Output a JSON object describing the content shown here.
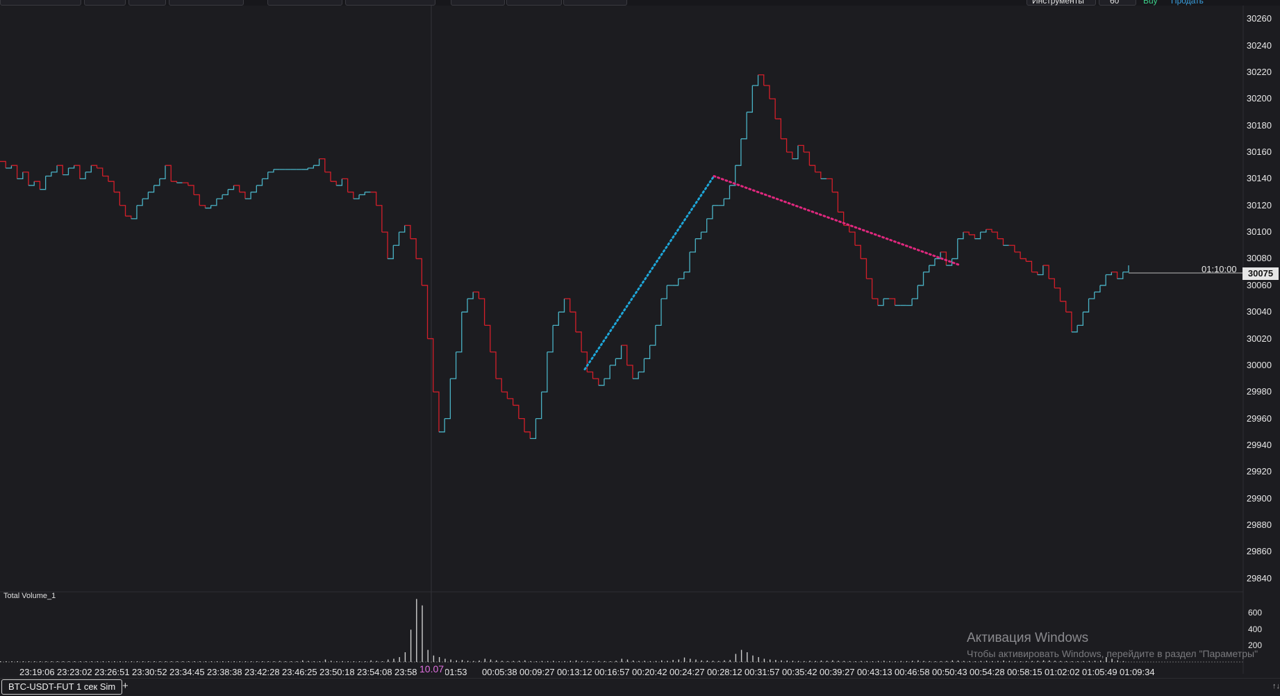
{
  "toolbar": {
    "instruments_label": "Инструменты",
    "interval_value": "60",
    "buy_label": "Buy",
    "sell_label": "Продать"
  },
  "chart_data": {
    "type": "line",
    "symbol": "BTC-USDT-FUT",
    "ylim": [
      29830,
      30270
    ],
    "yticks": [
      30260,
      30240,
      30220,
      30200,
      30180,
      30160,
      30140,
      30120,
      30100,
      30080,
      30060,
      30040,
      30020,
      30000,
      29980,
      29960,
      29940,
      29920,
      29900,
      29880,
      29860,
      29840
    ],
    "xticks": [
      "23:19:06",
      "23:23:02",
      "23:26:51",
      "23:30:52",
      "23:34:45",
      "23:38:38",
      "23:42:28",
      "23:46:25",
      "23:50:18",
      "23:54:08",
      "23:58",
      "01:53",
      "00:05:38",
      "00:09:27",
      "00:13:12",
      "00:16:57",
      "00:20:42",
      "00:24:27",
      "00:28:12",
      "00:31:57",
      "00:35:42",
      "00:39:27",
      "00:43:13",
      "00:46:58",
      "00:50:43",
      "00:54:28",
      "00:58:15",
      "01:02:02",
      "01:05:49",
      "01:09:34"
    ],
    "date_marker": "10.07",
    "series": [
      {
        "values": [
          30153,
          30148,
          30150,
          30140,
          30145,
          30135,
          30138,
          30132,
          30142,
          30145,
          30150,
          30143,
          30148,
          30150,
          30140,
          30145,
          30150,
          30148,
          30142,
          30138,
          30130,
          30120,
          30112,
          30110,
          30120,
          30125,
          30130,
          30135,
          30140,
          30150,
          30138,
          30137,
          30137,
          30135,
          30128,
          30120,
          30118,
          30120,
          30125,
          30128,
          30132,
          30135,
          30130,
          30125,
          30130,
          30135,
          30140,
          30145,
          30147,
          30147,
          30147,
          30147,
          30147,
          30147,
          30148,
          30150,
          30155,
          30145,
          30138,
          30135,
          30140,
          30130,
          30125,
          30128,
          30130,
          30130,
          30120,
          30100,
          30080,
          30090,
          30100,
          30105,
          30095,
          30080,
          30060,
          30020,
          29980,
          29950,
          29960,
          29990,
          30010,
          30040,
          30050,
          30055,
          30050,
          30030,
          30010,
          29990,
          29980,
          29975,
          29970,
          29960,
          29950,
          29945,
          29960,
          29980,
          30010,
          30030,
          30040,
          30050,
          30040,
          30025,
          30010,
          29995,
          29990,
          29985,
          29990,
          30000,
          30005,
          30015,
          30000,
          29990,
          29995,
          30005,
          30015,
          30030,
          30050,
          30060,
          30060,
          30065,
          30070,
          30085,
          30095,
          30100,
          30110,
          30120,
          30120,
          30125,
          30135,
          30150,
          30170,
          30190,
          30210,
          30218,
          30210,
          30200,
          30185,
          30170,
          30160,
          30155,
          30165,
          30160,
          30150,
          30145,
          30140,
          30140,
          30130,
          30115,
          30105,
          30100,
          30090,
          30080,
          30065,
          30050,
          30045,
          30050,
          30050,
          30045,
          30045,
          30045,
          30050,
          30060,
          30070,
          30075,
          30080,
          30085,
          30075,
          30080,
          30095,
          30100,
          30098,
          30095,
          30100,
          30102,
          30100,
          30095,
          30090,
          30090,
          30085,
          30080,
          30078,
          30070,
          30068,
          30075,
          30065,
          30058,
          30048,
          30040,
          30025,
          30030,
          30040,
          30050,
          30055,
          30060,
          30068,
          30070,
          30065,
          30070,
          30075
        ],
        "last_price": "30075"
      }
    ],
    "drawings": [
      {
        "type": "trendline",
        "color": "#1ea6d8",
        "style": "dotted",
        "from": {
          "x": "00:26",
          "y": 29997
        },
        "to": {
          "x": "00:39",
          "y": 30142
        }
      },
      {
        "type": "trendline",
        "color": "#e0287e",
        "style": "dotted",
        "from": {
          "x": "00:39",
          "y": 30142
        },
        "to": {
          "x": "01:10",
          "y": 30075
        }
      }
    ],
    "crosshair_time": "01:10:00",
    "colors": {
      "up": "#4ab3c6",
      "down": "#d41f2a",
      "background": "#1c1c20"
    }
  },
  "volume_panel": {
    "title": "Total Volume_1",
    "yticks": [
      "600",
      "400",
      "200"
    ],
    "ylim": [
      0,
      800
    ],
    "values": [
      4,
      6,
      3,
      5,
      8,
      4,
      3,
      6,
      5,
      4,
      7,
      5,
      3,
      4,
      6,
      5,
      4,
      3,
      5,
      6,
      4,
      5,
      3,
      4,
      6,
      8,
      5,
      4,
      6,
      5,
      4,
      3,
      5,
      7,
      5,
      4,
      6,
      9,
      5,
      4,
      6,
      5,
      4,
      5,
      6,
      7,
      5,
      4,
      5,
      12,
      8,
      6,
      5,
      20,
      12,
      6,
      5,
      30,
      15,
      8,
      10,
      8,
      6,
      6,
      8,
      20,
      12,
      9,
      30,
      40,
      60,
      120,
      400,
      780,
      700,
      150,
      80,
      60,
      40,
      30,
      20,
      25,
      15,
      12,
      18,
      40,
      30,
      20,
      15,
      10,
      12,
      15,
      20,
      10,
      8,
      12,
      10,
      14,
      8,
      10,
      15,
      20,
      12,
      10,
      8,
      12,
      10,
      9,
      15,
      40,
      30,
      18,
      12,
      15,
      10,
      12,
      20,
      14,
      25,
      30,
      55,
      40,
      30,
      20,
      18,
      15,
      12,
      20,
      25,
      100,
      150,
      120,
      80,
      60,
      40,
      30,
      25,
      20,
      18,
      15,
      12,
      10,
      15,
      12,
      18,
      15,
      20,
      15,
      12,
      10,
      8,
      12,
      10,
      8,
      12,
      15,
      10,
      8,
      12,
      10,
      15,
      20,
      12,
      10,
      8,
      10,
      12,
      20,
      18,
      12,
      10,
      8,
      12,
      15,
      10,
      12,
      18,
      12,
      10,
      8,
      10,
      12,
      15,
      20,
      18,
      15,
      12,
      10,
      8,
      6,
      10,
      12,
      15,
      18,
      60,
      40,
      20,
      10
    ]
  },
  "watermark": {
    "title": "Активация Windows",
    "subtitle": "Чтобы активировать Windows, перейдите в раздел \"Параметры\""
  },
  "bottom": {
    "tab_label": "BTC-USDT-FUT 1 сек Sim",
    "add_label": "+",
    "scroll_icon": "↑↓"
  }
}
